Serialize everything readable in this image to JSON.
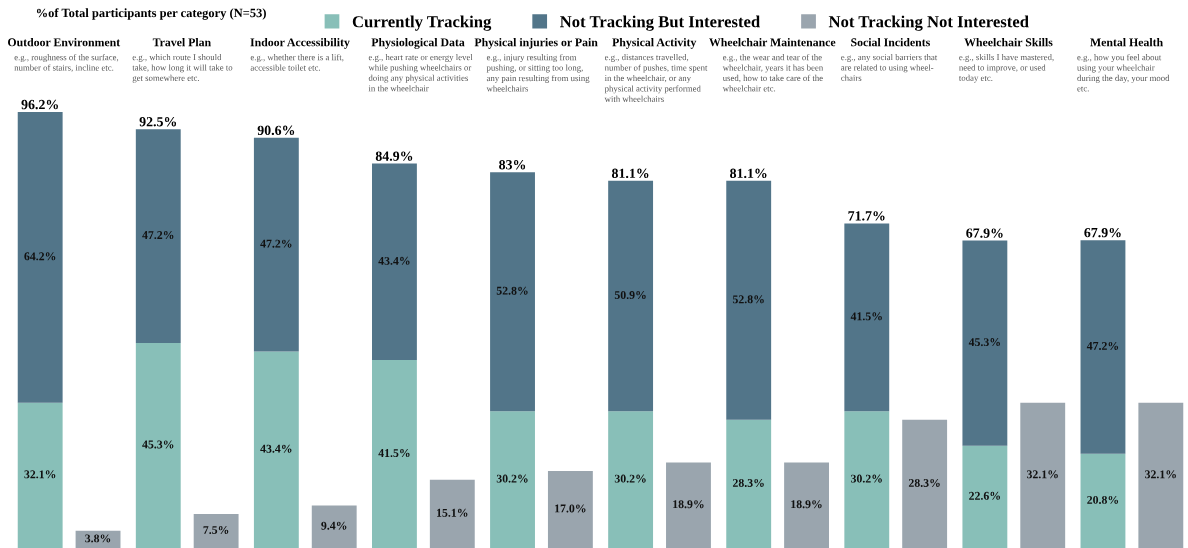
{
  "chart_data": [
    {
      "type": "bar",
      "title": "%of Total participants per category (N=53)",
      "categories": [
        "Outdoor Environment",
        "Travel Plan",
        "Indoor Accessibility",
        "Physiological Data",
        "Physical injuries or Pain",
        "Physical Activity",
        "Wheelchair Maintenance",
        "Social Incidents",
        "Wheelchair Skills",
        "Mental Health"
      ],
      "annotations": [
        "e.g., roughness of the surface,\nnumber of stairs, incline etc.",
        "e.g., which route I should\ntake, how long it will take to\nget somewhere etc.",
        "e.g., whether there is a lift,\naccessible toilet etc.",
        "e.g., heart rate or energy level\nwhile pushing wheelchairs or\ndoing any physical activities\nin the wheelchair",
        "e.g., injury resulting from\npushing, or sitting too long,\nany pain resulting from using\nwheelchairs",
        "e.g., distances travelled,\nnumber of pushes, time spent\nin the wheelchair, or any\nphysical activity performed\nwith wheelchairs",
        "e.g., the wear and tear of the\nwheelchair, years it has been\nused, how to take care of the\nwheelchair etc.",
        "e.g., any social barriers that\nare related to using wheel-\nchairs",
        "e.g., skills I have mastered,\nneed to improve, or used\ntoday etc.",
        "e.g., how you feel about\nusing your wheelchair\nduring the day, your mood\netc."
      ],
      "stacked": true,
      "series": [
        {
          "name": "Currently Tracking",
          "color": "#88bfb8",
          "values": [
            32.1,
            45.3,
            43.4,
            41.5,
            30.2,
            30.2,
            28.3,
            30.2,
            22.6,
            20.8
          ],
          "value_labels": [
            "32.1%",
            "45.3%",
            "43.4%",
            "41.5%",
            "30.2%",
            "30.2%",
            "28.3%",
            "30.2%",
            "22.6%",
            "20.8%"
          ]
        },
        {
          "name": "Not Tracking But Interested",
          "color": "#527589",
          "values": [
            64.2,
            47.2,
            47.2,
            43.4,
            52.8,
            50.9,
            52.8,
            41.5,
            45.3,
            47.2
          ],
          "value_labels": [
            "64.2%",
            "47.2%",
            "47.2%",
            "43.4%",
            "52.8%",
            "50.9%",
            "52.8%",
            "41.5%",
            "45.3%",
            "47.2%"
          ]
        }
      ],
      "totals": [
        "96.2%",
        "92.5%",
        "90.6%",
        "84.9%",
        "83%",
        "81.1%",
        "81.1%",
        "71.7%",
        "67.9%",
        "67.9%"
      ],
      "legend": "top"
    },
    {
      "type": "bar",
      "categories": [
        null,
        null,
        null,
        null,
        null,
        null,
        null,
        null,
        null,
        null
      ],
      "series": [
        {
          "name": "Not Tracking Not Interested",
          "color": "#9aa5ae",
          "values": [
            3.8,
            7.5,
            9.4,
            15.1,
            17.0,
            18.9,
            18.9,
            28.3,
            32.1,
            32.1
          ],
          "value_labels": [
            "3.8%",
            "7.5%",
            "9.4%",
            "15.1%",
            "17.0%",
            "18.9%",
            "18.9%",
            "28.3%",
            "32.1%",
            "32.1%"
          ]
        }
      ],
      "legend": "top"
    }
  ]
}
